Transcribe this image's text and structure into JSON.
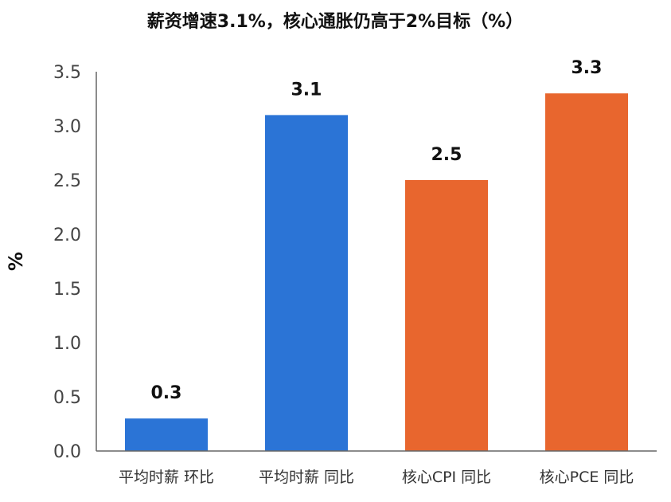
{
  "chart_data": {
    "type": "bar",
    "title": "薪资增速3.1%，核心通胀仍高于2%目标（%）",
    "ylabel": "%",
    "xlabel": "",
    "categories": [
      "平均时薪 环比",
      "平均时薪 同比",
      "核心CPI 同比",
      "核心PCE 同比"
    ],
    "values": [
      0.3,
      3.1,
      2.5,
      3.3
    ],
    "data_labels": [
      "0.3",
      "3.1",
      "2.5",
      "3.3"
    ],
    "bar_colors": [
      "#2B74D6",
      "#2B74D6",
      "#E8662E",
      "#E8662E"
    ],
    "ylim": [
      0,
      3.5
    ],
    "yticks": [
      0,
      0.5,
      1.0,
      1.5,
      2.0,
      2.5,
      3.0,
      3.5
    ],
    "ytick_labels": [
      "0.0",
      "0.5",
      "1.0",
      "1.5",
      "2.0",
      "2.5",
      "3.0",
      "3.5"
    ],
    "grid": false,
    "legend": "none"
  }
}
